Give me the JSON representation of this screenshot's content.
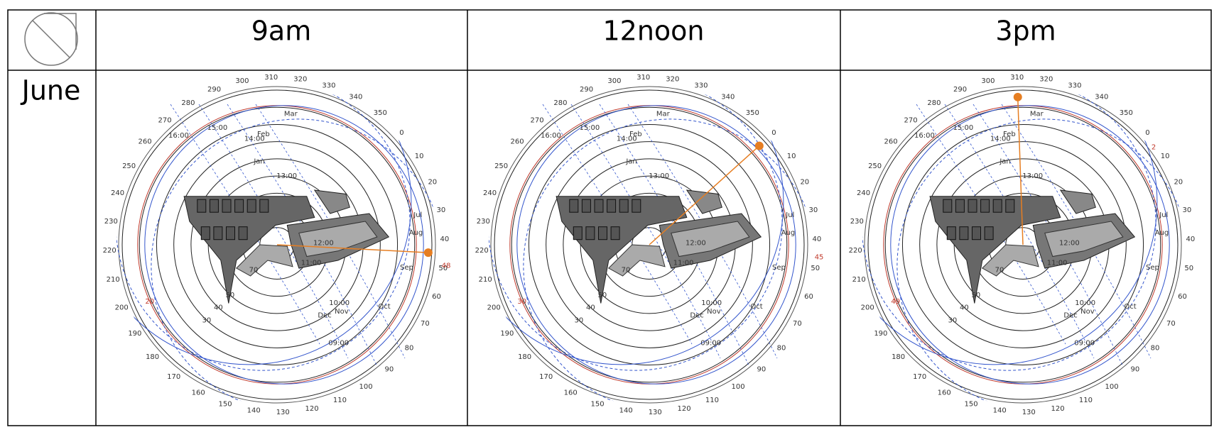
{
  "header": {
    "columns": [
      "9am",
      "12noon",
      "3pm"
    ]
  },
  "rows": [
    {
      "label": "June"
    }
  ],
  "diagram": {
    "azimuth_labels": [
      0,
      10,
      20,
      30,
      40,
      50,
      60,
      70,
      80,
      90,
      100,
      110,
      120,
      130,
      140,
      150,
      160,
      170,
      180,
      190,
      200,
      210,
      220,
      230,
      240,
      250,
      260,
      270,
      280,
      290,
      300,
      310,
      320,
      330,
      340,
      350
    ],
    "altitude_labels": [
      30,
      40,
      50,
      70
    ],
    "month_labels": [
      "Jan",
      "Feb",
      "Mar",
      "Jul",
      "Aug",
      "Sep",
      "Oct",
      "Nov",
      "Dec"
    ],
    "hour_labels": [
      "09:00",
      "10:00",
      "11:00",
      "12:00",
      "13:00",
      "14:00",
      "15:00",
      "16:00"
    ]
  },
  "cells": [
    {
      "sun_azimuth": 45,
      "sun_altitude": 2,
      "red_labels": [
        48,
        20
      ]
    },
    {
      "sun_azimuth": 0,
      "sun_altitude": 4,
      "red_labels": [
        45,
        30
      ]
    },
    {
      "sun_azimuth": 310,
      "sun_altitude": 4,
      "red_labels": [
        2,
        49
      ]
    }
  ]
}
